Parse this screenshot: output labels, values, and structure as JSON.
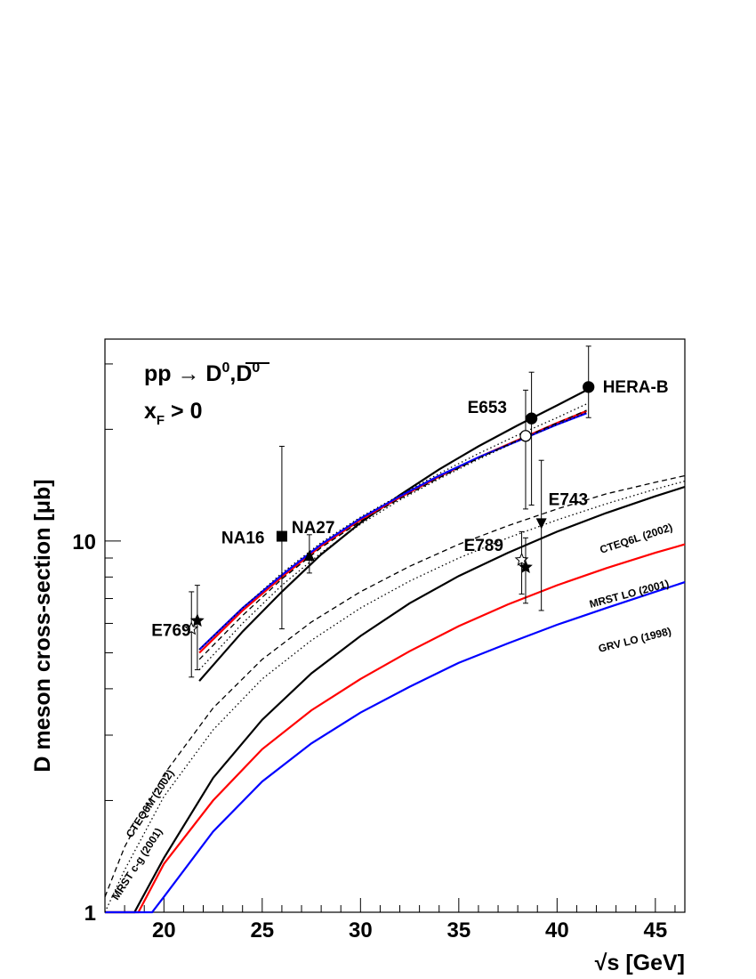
{
  "chart_data": {
    "type": "line",
    "ylabel": "D meson cross-section [μb]",
    "xlabel": "√s [GeV]",
    "xlim": [
      17,
      46.5
    ],
    "ylim": [
      1,
      35
    ],
    "yscale": "log",
    "grid": false,
    "x_ticks": [
      20,
      25,
      30,
      35,
      40,
      45
    ],
    "y_ticks": [
      {
        "value": 1,
        "label": "1"
      },
      {
        "value": 10,
        "label": "10"
      }
    ],
    "process": "pp → D⁰,D̅⁰",
    "process_parts": {
      "main": "pp → D",
      "sup1": "0",
      "mid": ",D",
      "sup2": "0"
    },
    "condition": "xF > 0",
    "condition_parts": {
      "main": "x",
      "sub": "F",
      "rest": " > 0"
    },
    "curve_labels": [
      "CTEQ6L (2002)",
      "MRST LO (2001)",
      "GRV LO (1998)",
      "CTEQ6M (2002)",
      "MRST c-g (2001)"
    ],
    "series": [
      {
        "name": "CTEQ6L (2002)",
        "color": "#000000",
        "style": "solid",
        "x": [
          18.5,
          20,
          22.5,
          25,
          27.5,
          30,
          32.5,
          35,
          37.5,
          40,
          42.5,
          45,
          46.5
        ],
        "y": [
          1.0,
          1.4,
          2.3,
          3.3,
          4.4,
          5.55,
          6.8,
          8.05,
          9.3,
          10.6,
          11.9,
          13.2,
          14.0
        ]
      },
      {
        "name": "MRST LO (2001)",
        "color": "#ff0000",
        "style": "solid",
        "x": [
          18.7,
          20,
          22.5,
          25,
          27.5,
          30,
          32.5,
          35,
          37.5,
          40,
          42.5,
          45,
          46.5
        ],
        "y": [
          1.0,
          1.35,
          2.0,
          2.75,
          3.5,
          4.25,
          5.05,
          5.9,
          6.75,
          7.6,
          8.45,
          9.3,
          9.8
        ]
      },
      {
        "name": "GRV LO (1998)",
        "color": "#0000ff",
        "style": "solid",
        "x": [
          19.4,
          20,
          22.5,
          25,
          27.5,
          30,
          32.5,
          35,
          37.5,
          40,
          42.5,
          45,
          46.5
        ],
        "y": [
          1.0,
          1.1,
          1.65,
          2.25,
          2.85,
          3.45,
          4.05,
          4.7,
          5.3,
          5.95,
          6.6,
          7.3,
          7.75
        ]
      },
      {
        "name": "CTEQ6M (2002)",
        "color": "#000000",
        "style": "dashed",
        "x": [
          17,
          18,
          20,
          22.5,
          25,
          27.5,
          30,
          32.5,
          35,
          37.5,
          40,
          42.5,
          45,
          46.5
        ],
        "y": [
          1.1,
          1.5,
          2.35,
          3.55,
          4.8,
          6.05,
          7.3,
          8.55,
          9.8,
          11.0,
          12.2,
          13.4,
          14.4,
          15.0
        ]
      },
      {
        "name": "MRST c-g (2001)",
        "color": "#000000",
        "style": "dotted",
        "x": [
          17,
          18,
          20,
          22.5,
          25,
          27.5,
          30,
          32.5,
          35,
          37.5,
          40,
          42.5,
          45,
          46.5
        ],
        "y": [
          1.0,
          1.3,
          2.05,
          3.1,
          4.25,
          5.4,
          6.6,
          7.8,
          9.0,
          10.2,
          11.4,
          12.6,
          13.8,
          14.5
        ]
      },
      {
        "name": "",
        "color": "#000000",
        "style": "solid",
        "x": [
          21.8,
          24,
          26,
          28,
          30,
          32,
          34,
          36,
          38,
          40,
          41.5
        ],
        "y": [
          4.2,
          5.7,
          7.3,
          9.2,
          11.2,
          13.3,
          15.6,
          18.0,
          20.5,
          23.2,
          25.5
        ]
      },
      {
        "name": "",
        "color": "#ff0000",
        "style": "solid",
        "x": [
          21.8,
          24,
          26,
          28,
          30,
          32,
          34,
          36,
          38,
          40,
          41.5
        ],
        "y": [
          5.0,
          6.5,
          8.0,
          9.7,
          11.4,
          13.1,
          14.9,
          16.8,
          18.7,
          20.8,
          22.4
        ]
      },
      {
        "name": "",
        "color": "#0000ff",
        "style": "solid",
        "x": [
          21.8,
          24,
          26,
          28,
          30,
          32,
          34,
          36,
          38,
          40,
          41.5
        ],
        "y": [
          5.1,
          6.6,
          8.1,
          9.8,
          11.5,
          13.2,
          15.0,
          16.8,
          18.6,
          20.6,
          22.1
        ]
      },
      {
        "name": "",
        "color": "#000000",
        "style": "dashed",
        "x": [
          21.8,
          24,
          26,
          28,
          30,
          32,
          34,
          36,
          38,
          40,
          41.5
        ],
        "y": [
          4.8,
          6.3,
          7.9,
          9.6,
          11.3,
          13.0,
          14.8,
          16.7,
          18.7,
          20.8,
          22.5
        ]
      },
      {
        "name": "",
        "color": "#000000",
        "style": "dotted",
        "x": [
          21.8,
          24,
          26,
          28,
          30,
          32,
          34,
          36,
          38,
          40,
          41.5
        ],
        "y": [
          4.5,
          6.0,
          7.6,
          9.3,
          11.1,
          12.9,
          14.7,
          16.6,
          18.6,
          20.6,
          22.2
        ]
      },
      {
        "name": "",
        "color": "#000000",
        "style": "dotted",
        "x": [
          21.8,
          24,
          26,
          28,
          30,
          32,
          34,
          36,
          38,
          40,
          41.5
        ],
        "y": [
          5.1,
          6.6,
          8.2,
          9.9,
          11.6,
          13.3,
          15.2,
          17.2,
          19.3,
          21.5,
          23.4
        ]
      }
    ],
    "points": [
      {
        "label": "E769",
        "marker": "star-open",
        "x": 21.4,
        "y": 5.8,
        "yerr": [
          4.3,
          7.3
        ]
      },
      {
        "label": "",
        "marker": "star-filled",
        "x": 21.7,
        "y": 6.1,
        "yerr": [
          4.5,
          7.6
        ]
      },
      {
        "label": "NA16",
        "marker": "square-filled",
        "x": 26.0,
        "y": 10.3,
        "yerr": [
          5.8,
          18.0
        ]
      },
      {
        "label": "NA27",
        "marker": "triangle-up-filled",
        "x": 27.4,
        "y": 9.1,
        "yerr": [
          8.2,
          10.4
        ]
      },
      {
        "label": "E653",
        "marker": "circle-filled",
        "x": 38.7,
        "y": 21.4,
        "yerr": [
          12.5,
          28.5
        ]
      },
      {
        "label": "",
        "marker": "circle-open",
        "x": 38.4,
        "y": 19.2,
        "yerr": [
          12.2,
          25.5
        ]
      },
      {
        "label": "E743",
        "marker": "triangle-down-filled",
        "x": 39.2,
        "y": 11.2,
        "yerr": [
          6.5,
          16.5
        ]
      },
      {
        "label": "E789",
        "marker": "star-open",
        "x": 38.2,
        "y": 8.9,
        "yerr": [
          7.2,
          10.6
        ]
      },
      {
        "label": "",
        "marker": "star-filled",
        "x": 38.4,
        "y": 8.5,
        "yerr": [
          6.8,
          10.2
        ]
      },
      {
        "label": "HERA-B",
        "marker": "circle-filled",
        "x": 41.6,
        "y": 26.0,
        "yerr": [
          21.5,
          33.5
        ]
      }
    ]
  }
}
